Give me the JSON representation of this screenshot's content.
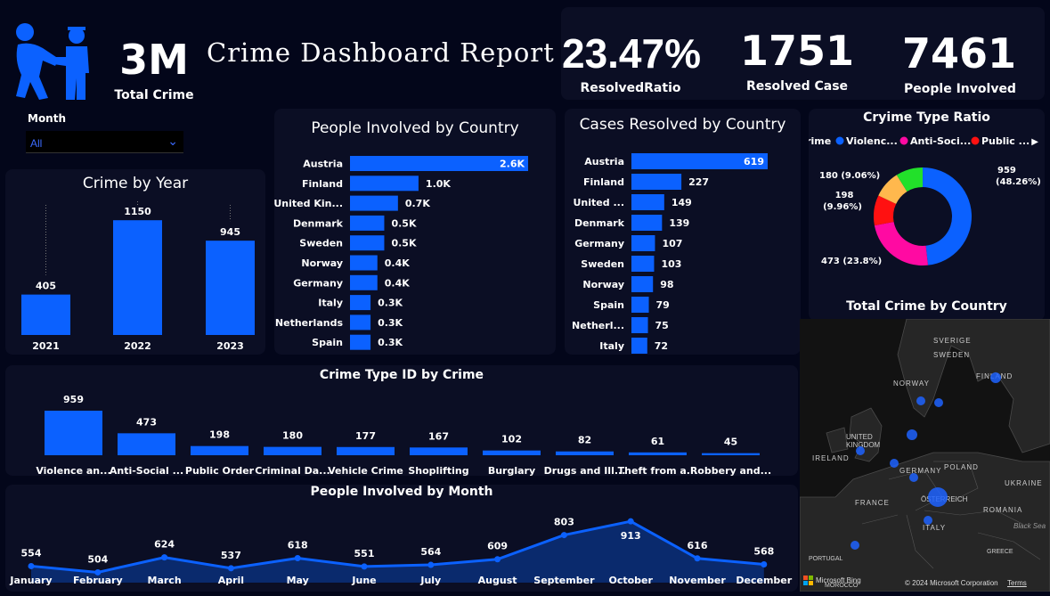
{
  "header": {
    "total_value": "3M",
    "total_label": "Total Crime",
    "title": "Crime Dashboard Report",
    "month_label": "Month",
    "month_value": "All"
  },
  "kpis": [
    {
      "value": "23.47%",
      "label": "ResolvedRatio"
    },
    {
      "value": "1751",
      "label": "Resolved Case"
    },
    {
      "value": "7461",
      "label": "People Involved"
    }
  ],
  "colors": {
    "accent": "#0b61ff",
    "background": "#03061a",
    "panel": "#0b0e24",
    "violence": "#0b61ff",
    "antisocial": "#ff0aa2",
    "public_order": "#ff1111",
    "criminal_damage": "#ffb84d",
    "vehicle": "#22e02a"
  },
  "chart_data": [
    {
      "id": "crime_by_year",
      "type": "bar",
      "title": "Crime by Year",
      "categories": [
        "2021",
        "2022",
        "2023"
      ],
      "values": [
        405,
        1150,
        945
      ],
      "labels": [
        "405",
        "1150",
        "945"
      ]
    },
    {
      "id": "people_by_country",
      "type": "bar",
      "orientation": "horizontal",
      "title": "People Involved by Country",
      "categories": [
        "Austria",
        "Finland",
        "United Kin...",
        "Denmark",
        "Sweden",
        "Norway",
        "Germany",
        "Italy",
        "Netherlands",
        "Spain"
      ],
      "values": [
        2600,
        1000,
        700,
        500,
        500,
        400,
        400,
        300,
        300,
        300
      ],
      "labels": [
        "2.6K",
        "1.0K",
        "0.7K",
        "0.5K",
        "0.5K",
        "0.4K",
        "0.4K",
        "0.3K",
        "0.3K",
        "0.3K"
      ]
    },
    {
      "id": "cases_by_country",
      "type": "bar",
      "orientation": "horizontal",
      "title": "Cases Resolved by Country",
      "categories": [
        "Austria",
        "Finland",
        "United ...",
        "Denmark",
        "Germany",
        "Sweden",
        "Norway",
        "Spain",
        "Netherl...",
        "Italy"
      ],
      "values": [
        619,
        227,
        149,
        139,
        107,
        103,
        98,
        79,
        75,
        72
      ],
      "labels": [
        "619",
        "227",
        "149",
        "139",
        "107",
        "103",
        "98",
        "79",
        "75",
        "72"
      ]
    },
    {
      "id": "crime_type_ratio",
      "type": "pie",
      "title": "Cryime Type Ratio",
      "legend_title": "Crime",
      "legend": [
        "Violenc...",
        "Anti-Soci...",
        "Public ..."
      ],
      "categories": [
        "Violence and sexual offences",
        "Anti-social behaviour",
        "Public order",
        "Criminal damage",
        "Vehicle crime"
      ],
      "values": [
        959,
        473,
        198,
        180,
        177
      ],
      "labels": [
        "959 (48.26%)",
        "473 (23.8%)",
        "198 (9.96%)",
        "180 (9.06%)",
        ""
      ]
    },
    {
      "id": "crime_type_id",
      "type": "bar",
      "title": "Crime Type ID by Crime",
      "categories": [
        "Violence an...",
        "Anti-Social ...",
        "Public Order",
        "Criminal Da...",
        "Vehicle Crime",
        "Shoplifting",
        "Burglary",
        "Drugs and Ill...",
        "Theft from a...",
        "Robbery and..."
      ],
      "values": [
        959,
        473,
        198,
        180,
        177,
        167,
        102,
        82,
        61,
        45
      ],
      "labels": [
        "959",
        "473",
        "198",
        "180",
        "177",
        "167",
        "102",
        "82",
        "61",
        "45"
      ]
    },
    {
      "id": "people_by_month",
      "type": "area",
      "title": "People Involved by Month",
      "categories": [
        "January",
        "February",
        "March",
        "April",
        "May",
        "June",
        "July",
        "August",
        "September",
        "October",
        "November",
        "December"
      ],
      "values": [
        554,
        504,
        624,
        537,
        618,
        551,
        564,
        609,
        803,
        913,
        616,
        568
      ],
      "labels": [
        "554",
        "504",
        "624",
        "537",
        "618",
        "551",
        "564",
        "609",
        "803",
        "913",
        "616",
        "568"
      ]
    }
  ],
  "map": {
    "title": "Total Crime by Country",
    "place_labels": [
      "SVERIGE",
      "SWEDEN",
      "FINLAND",
      "NORWAY",
      "UNITED KINGDOM",
      "IRELAND",
      "GERMANY",
      "POLAND",
      "UKRAINE",
      "FRANCE",
      "ÖSTERREICH",
      "ROMANIA",
      "ITALY",
      "PORTUGAL",
      "GREECE",
      "Black Sea",
      "MOROCCO"
    ],
    "bing_label": "Microsoft Bing",
    "copyright": "© 2024 Microsoft Corporation",
    "terms": "Terms"
  }
}
